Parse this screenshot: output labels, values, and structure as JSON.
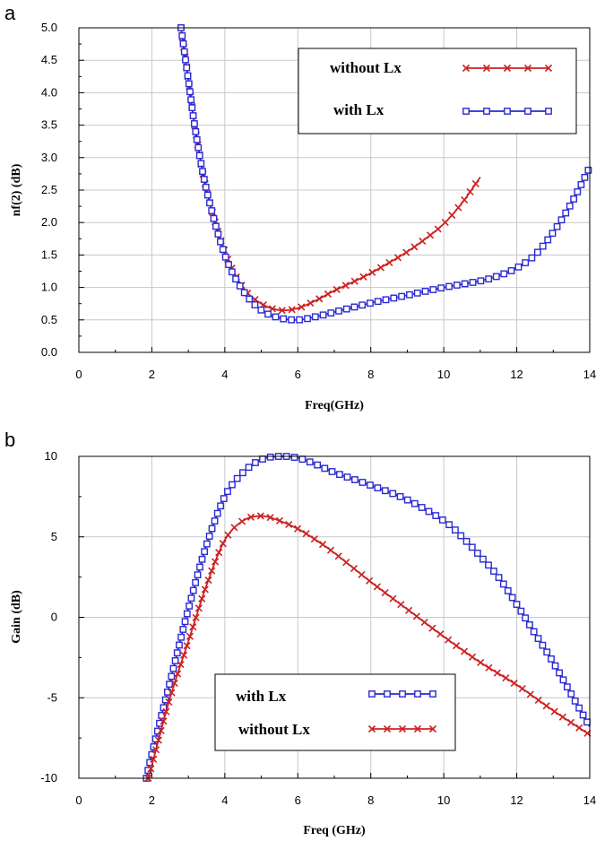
{
  "colors": {
    "without_lx": "#cc2222",
    "with_lx": "#2a2ad0"
  },
  "chart_data": [
    {
      "panel": "a",
      "type": "line",
      "title": "",
      "xlabel": "Freq(GHz)",
      "ylabel": "nf(2) (dB)",
      "xlim": [
        0,
        14
      ],
      "ylim": [
        0,
        5
      ],
      "xticks": [
        "0",
        "2",
        "4",
        "6",
        "8",
        "10",
        "12",
        "14"
      ],
      "yticks": [
        "0.0",
        "0.5",
        "1.0",
        "1.5",
        "2.0",
        "2.5",
        "3.0",
        "3.5",
        "4.0",
        "4.5",
        "5.0"
      ],
      "grid": true,
      "legend_position": "top-right",
      "series": [
        {
          "name": "without Lx",
          "marker": "x",
          "x": [
            2.8,
            3.0,
            3.2,
            3.5,
            4.0,
            4.5,
            5.0,
            5.5,
            6.0,
            6.5,
            7.0,
            7.5,
            8.0,
            8.5,
            9.0,
            9.5,
            10.0,
            10.5,
            11.0
          ],
          "y": [
            5.0,
            4.2,
            3.4,
            2.5,
            1.55,
            1.0,
            0.75,
            0.65,
            0.68,
            0.8,
            0.95,
            1.08,
            1.22,
            1.38,
            1.55,
            1.75,
            1.98,
            2.3,
            2.7
          ]
        },
        {
          "name": "with Lx",
          "marker": "square",
          "x": [
            2.8,
            3.0,
            3.2,
            3.5,
            4.0,
            4.5,
            5.0,
            5.5,
            6.0,
            6.5,
            7.0,
            8.0,
            9.0,
            10.0,
            11.0,
            11.5,
            12.0,
            12.5,
            13.0,
            13.5,
            14.0
          ],
          "y": [
            5.0,
            4.2,
            3.4,
            2.5,
            1.5,
            0.95,
            0.65,
            0.53,
            0.5,
            0.55,
            0.62,
            0.76,
            0.88,
            1.0,
            1.1,
            1.18,
            1.3,
            1.5,
            1.85,
            2.3,
            2.85
          ]
        }
      ]
    },
    {
      "panel": "b",
      "type": "line",
      "title": "",
      "xlabel": "Freq (GHz)",
      "ylabel": "Gain (dB)",
      "xlim": [
        0,
        14
      ],
      "ylim": [
        -10,
        10
      ],
      "xticks": [
        "0",
        "2",
        "4",
        "6",
        "8",
        "10",
        "12",
        "14"
      ],
      "yticks": [
        "-10",
        "-5",
        "0",
        "5",
        "10"
      ],
      "grid": true,
      "legend_position": "bottom-center",
      "series": [
        {
          "name": "with Lx",
          "marker": "square",
          "x": [
            1.85,
            2.0,
            2.5,
            3.0,
            3.5,
            4.0,
            4.5,
            5.0,
            5.5,
            6.0,
            6.5,
            7.0,
            8.0,
            9.0,
            10.0,
            10.5,
            11.0,
            11.5,
            12.0,
            12.5,
            13.0,
            13.5,
            14.0
          ],
          "y": [
            -10.0,
            -8.5,
            -4.0,
            0.5,
            4.5,
            7.5,
            9.0,
            9.8,
            10.0,
            9.9,
            9.5,
            9.0,
            8.2,
            7.3,
            6.0,
            5.0,
            3.8,
            2.5,
            0.8,
            -1.0,
            -2.8,
            -4.8,
            -6.8
          ]
        },
        {
          "name": "without Lx",
          "marker": "x",
          "x": [
            1.9,
            2.0,
            2.5,
            3.0,
            3.5,
            4.0,
            4.5,
            5.0,
            5.5,
            6.0,
            6.5,
            7.0,
            8.0,
            9.0,
            10.0,
            11.0,
            12.0,
            13.0,
            14.0
          ],
          "y": [
            -10.0,
            -9.2,
            -5.0,
            -1.5,
            2.0,
            4.8,
            6.0,
            6.3,
            6.0,
            5.5,
            4.8,
            4.0,
            2.2,
            0.5,
            -1.2,
            -2.8,
            -4.2,
            -5.8,
            -7.3
          ]
        }
      ]
    }
  ]
}
